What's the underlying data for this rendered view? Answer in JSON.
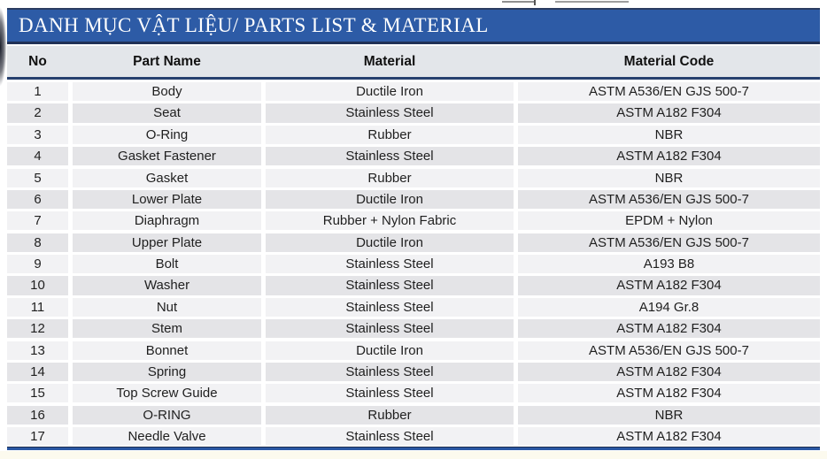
{
  "page": {
    "banner_title": "DANH MỤC VẬT LIỆU/ PARTS LIST & MATERIAL"
  },
  "table": {
    "columns": [
      "No",
      "Part Name",
      "Material",
      "Material Code"
    ],
    "rows": [
      [
        "1",
        "Body",
        "Ductile Iron",
        "ASTM A536/EN GJS 500-7"
      ],
      [
        "2",
        "Seat",
        "Stainless Steel",
        "ASTM A182 F304"
      ],
      [
        "3",
        "O-Ring",
        "Rubber",
        "NBR"
      ],
      [
        "4",
        "Gasket Fastener",
        "Stainless Steel",
        "ASTM A182 F304"
      ],
      [
        "5",
        "Gasket",
        "Rubber",
        "NBR"
      ],
      [
        "6",
        "Lower Plate",
        "Ductile Iron",
        "ASTM A536/EN GJS 500-7"
      ],
      [
        "7",
        "Diaphragm",
        "Rubber + Nylon Fabric",
        "EPDM + Nylon"
      ],
      [
        "8",
        "Upper Plate",
        "Ductile Iron",
        "ASTM A536/EN GJS 500-7"
      ],
      [
        "9",
        "Bolt",
        "Stainless Steel",
        "A193 B8"
      ],
      [
        "10",
        "Washer",
        "Stainless Steel",
        "ASTM A182 F304"
      ],
      [
        "11",
        "Nut",
        "Stainless Steel",
        "A194 Gr.8"
      ],
      [
        "12",
        "Stem",
        "Stainless Steel",
        "ASTM A182 F304"
      ],
      [
        "13",
        "Bonnet",
        "Ductile Iron",
        "ASTM A536/EN GJS 500-7"
      ],
      [
        "14",
        "Spring",
        "Stainless Steel",
        "ASTM A182 F304"
      ],
      [
        "15",
        "Top Screw Guide",
        "Stainless Steel",
        "ASTM A182 F304"
      ],
      [
        "16",
        "O-RING",
        "Rubber",
        "NBR"
      ],
      [
        "17",
        "Needle Valve",
        "Stainless Steel",
        "ASTM A182 F304"
      ]
    ]
  },
  "colors": {
    "banner_blue": "#2d5ba6",
    "border_navy": "#203156",
    "header_bg": "#e3e6ea",
    "row_light": "#f2f2f4",
    "row_dark": "#e4e4e7",
    "bottom_rule_blue": "#2a57a3",
    "footer_cream": "#fcfaee",
    "text": "#1f1f1f"
  }
}
